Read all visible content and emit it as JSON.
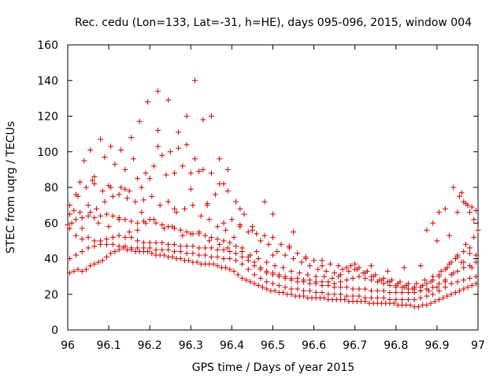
{
  "chart_data": {
    "type": "scatter",
    "title": "Rec. cedu (Lon=133, Lat=-31, h=HE), days 095-096, 2015, window 004",
    "xlabel": "GPS time / Days of year 2015",
    "ylabel": "STEC from uqrg / TECUs",
    "xlim": [
      96,
      97
    ],
    "ylim": [
      0,
      160
    ],
    "xticks": [
      96,
      96.1,
      96.2,
      96.3,
      96.4,
      96.5,
      96.6,
      96.7,
      96.8,
      96.9,
      97
    ],
    "xtick_labels": [
      "96",
      "96.1",
      "96.2",
      "96.3",
      "96.4",
      "96.5",
      "96.6",
      "96.7",
      "96.8",
      "96.9",
      "97"
    ],
    "yticks": [
      0,
      20,
      40,
      60,
      80,
      100,
      120,
      140,
      160
    ],
    "ytick_labels": [
      "0",
      "20",
      "40",
      "60",
      "80",
      "100",
      "120",
      "140",
      "160"
    ],
    "grid": false,
    "legend": "none",
    "marker": "plus",
    "color": "#cc0000",
    "series": [
      {
        "x": [
          96.005,
          96.015,
          96.025,
          96.035,
          96.045,
          96.055,
          96.065,
          96.075,
          96.085,
          96.095,
          96.105,
          96.115,
          96.125,
          96.135,
          96.145,
          96.155,
          96.165,
          96.175,
          96.185,
          96.195,
          96.205,
          96.215,
          96.225,
          96.235,
          96.245,
          96.255,
          96.265,
          96.275,
          96.285,
          96.295,
          96.305,
          96.315,
          96.325,
          96.335,
          96.345,
          96.355,
          96.365,
          96.375,
          96.385,
          96.395,
          96.405,
          96.415,
          96.425,
          96.435,
          96.445,
          96.455,
          96.465,
          96.475,
          96.485,
          96.495,
          96.505,
          96.515,
          96.525,
          96.535,
          96.545,
          96.555,
          96.565,
          96.575,
          96.585,
          96.595,
          96.605,
          96.615,
          96.625,
          96.635,
          96.645,
          96.655,
          96.665,
          96.675,
          96.685,
          96.695,
          96.705,
          96.715,
          96.725,
          96.735,
          96.745,
          96.755,
          96.765,
          96.775,
          96.785,
          96.795,
          96.805,
          96.815,
          96.825,
          96.835,
          96.845,
          96.855,
          96.865,
          96.875,
          96.885,
          96.895,
          96.905,
          96.915,
          96.925,
          96.935,
          96.945,
          96.955,
          96.965,
          96.975,
          96.985,
          96.995
        ],
        "y": [
          32,
          33,
          34,
          33,
          34,
          36,
          37,
          38,
          39,
          41,
          43,
          44,
          45,
          46,
          45,
          45,
          44,
          44,
          44,
          44,
          43,
          42,
          42,
          42,
          41,
          41,
          40,
          40,
          39,
          39,
          38,
          38,
          37,
          37,
          37,
          37,
          36,
          35,
          35,
          34,
          33,
          31,
          29,
          28,
          27,
          26,
          25,
          24,
          23,
          22,
          22,
          21,
          21,
          20,
          20,
          19,
          19,
          19,
          18,
          18,
          18,
          18,
          18,
          17,
          17,
          17,
          17,
          17,
          16,
          16,
          16,
          16,
          16,
          15,
          15,
          15,
          15,
          15,
          15,
          15,
          14,
          14,
          14,
          14,
          13,
          13,
          14,
          14,
          15,
          16,
          17,
          18,
          19,
          20,
          21,
          22,
          23,
          24,
          25,
          26
        ]
      },
      {
        "x": [
          96.005,
          96.02,
          96.035,
          96.05,
          96.065,
          96.08,
          96.095,
          96.11,
          96.125,
          96.14,
          96.155,
          96.17,
          96.185,
          96.2,
          96.215,
          96.23,
          96.245,
          96.26,
          96.275,
          96.29,
          96.305,
          96.32,
          96.335,
          96.35,
          96.365,
          96.38,
          96.395,
          96.41,
          96.425,
          96.44,
          96.455,
          96.47,
          96.485,
          96.5,
          96.515,
          96.53,
          96.545,
          96.56,
          96.575,
          96.59,
          96.605,
          96.62,
          96.635,
          96.65,
          96.665,
          96.68,
          96.695,
          96.71,
          96.725,
          96.74,
          96.755,
          96.77,
          96.785,
          96.8,
          96.815,
          96.83,
          96.845,
          96.86,
          96.875,
          96.89,
          96.905,
          96.92,
          96.935,
          96.95,
          96.965,
          96.98,
          96.995
        ],
        "y": [
          40,
          42,
          44,
          46,
          47,
          48,
          48,
          48,
          47,
          47,
          46,
          46,
          46,
          46,
          45,
          45,
          45,
          44,
          44,
          43,
          43,
          42,
          42,
          41,
          41,
          40,
          40,
          39,
          37,
          34,
          31,
          29,
          27,
          26,
          25,
          24,
          23,
          23,
          22,
          22,
          21,
          21,
          20,
          20,
          20,
          19,
          19,
          19,
          18,
          18,
          18,
          18,
          17,
          17,
          17,
          17,
          17,
          18,
          19,
          20,
          22,
          24,
          26,
          27,
          28,
          29,
          30
        ]
      },
      {
        "x": [
          96.005,
          96.02,
          96.035,
          96.05,
          96.065,
          96.08,
          96.095,
          96.11,
          96.125,
          96.14,
          96.155,
          96.17,
          96.185,
          96.2,
          96.215,
          96.23,
          96.245,
          96.26,
          96.275,
          96.29,
          96.305,
          96.32,
          96.335,
          96.35,
          96.365,
          96.38,
          96.395,
          96.41,
          96.425,
          96.44,
          96.455,
          96.47,
          96.485,
          96.5,
          96.515,
          96.53,
          96.545,
          96.56,
          96.575,
          96.59,
          96.605,
          96.62,
          96.635,
          96.65,
          96.665,
          96.68,
          96.695,
          96.71,
          96.725,
          96.74,
          96.755,
          96.77,
          96.785,
          96.8,
          96.815,
          96.83,
          96.845,
          96.86,
          96.875,
          96.89,
          96.905,
          96.92,
          96.935,
          96.95,
          96.965,
          96.98,
          96.995
        ],
        "y": [
          57,
          53,
          51,
          52,
          50,
          50,
          51,
          52,
          53,
          52,
          52,
          50,
          49,
          49,
          49,
          49,
          48,
          48,
          47,
          47,
          47,
          46,
          46,
          46,
          45,
          45,
          44,
          43,
          41,
          39,
          36,
          34,
          32,
          31,
          30,
          29,
          28,
          27,
          27,
          26,
          26,
          25,
          25,
          24,
          24,
          24,
          23,
          23,
          23,
          22,
          22,
          22,
          21,
          21,
          21,
          21,
          21,
          22,
          23,
          24,
          26,
          28,
          31,
          33,
          35,
          36,
          38
        ]
      },
      {
        "x": [
          96.005,
          96.02,
          96.035,
          96.05,
          96.065,
          96.08,
          96.095,
          96.11,
          96.125,
          96.14,
          96.155,
          96.17,
          96.185,
          96.2,
          96.215,
          96.23,
          96.245,
          96.26,
          96.275,
          96.29,
          96.305,
          96.32,
          96.335,
          96.35,
          96.365,
          96.38,
          96.395,
          96.41,
          96.425,
          96.44,
          96.455,
          96.47,
          96.485,
          96.5,
          96.515,
          96.53,
          96.545,
          96.56,
          96.575,
          96.59,
          96.605,
          96.62,
          96.635,
          96.65,
          96.665,
          96.68,
          96.695,
          96.71,
          96.725,
          96.74,
          96.755,
          96.77,
          96.785,
          96.8,
          96.815,
          96.83,
          96.845,
          96.86,
          96.875,
          96.89,
          96.905,
          96.92,
          96.935,
          96.95,
          96.965,
          96.98,
          96.995
        ],
        "y": [
          65,
          62,
          63,
          64,
          63,
          64,
          65,
          64,
          63,
          62,
          61,
          60,
          61,
          62,
          60,
          59,
          58,
          57,
          56,
          55,
          54,
          54,
          53,
          52,
          51,
          50,
          49,
          47,
          44,
          41,
          38,
          35,
          33,
          32,
          31,
          30,
          29,
          29,
          28,
          28,
          27,
          27,
          27,
          26,
          27,
          28,
          29,
          30,
          29,
          28,
          27,
          26,
          25,
          24,
          24,
          23,
          23,
          24,
          26,
          28,
          31,
          34,
          38,
          41,
          44,
          43,
          42
        ]
      },
      {
        "x": [
          96.005,
          96.025,
          96.045,
          96.065,
          96.085,
          96.105,
          96.125,
          96.145,
          96.165,
          96.185,
          96.205,
          96.225,
          96.245,
          96.265,
          96.285,
          96.305,
          96.325,
          96.345,
          96.365,
          96.385,
          96.405,
          96.425,
          96.445,
          96.465,
          96.485,
          96.505,
          96.525,
          96.545,
          96.565,
          96.585,
          96.605,
          96.625,
          96.645,
          96.665,
          96.685,
          96.705,
          96.725,
          96.745,
          96.765,
          96.785,
          96.805,
          96.825,
          96.845,
          96.865,
          96.885,
          96.905,
          96.925,
          96.945,
          96.965,
          96.985
        ],
        "y": [
          70,
          75,
          80,
          82,
          78,
          80,
          76,
          74,
          72,
          73,
          75,
          70,
          72,
          66,
          68,
          70,
          64,
          62,
          58,
          56,
          52,
          46,
          42,
          40,
          38,
          36,
          35,
          33,
          32,
          31,
          30,
          30,
          29,
          31,
          33,
          34,
          32,
          30,
          28,
          27,
          26,
          25,
          24,
          25,
          27,
          30,
          35,
          40,
          38,
          35
        ]
      },
      {
        "x": [
          96.01,
          96.03,
          96.05,
          96.07,
          96.09,
          96.11,
          96.13,
          96.15,
          96.17,
          96.19,
          96.21,
          96.23,
          96.25,
          96.27,
          96.29,
          96.31,
          96.33,
          96.35,
          96.37,
          96.39,
          96.41,
          96.43,
          96.45,
          96.47,
          96.49,
          96.51,
          96.53,
          96.55,
          96.57,
          96.59,
          96.61,
          96.63,
          96.65,
          96.67,
          96.69,
          96.71,
          96.73,
          96.75,
          96.77,
          96.79,
          96.81,
          96.83,
          96.85,
          96.87,
          96.89,
          96.91,
          96.93,
          96.95,
          96.97,
          96.99
        ],
        "y": [
          60,
          66,
          70,
          68,
          72,
          75,
          80,
          78,
          85,
          88,
          92,
          98,
          100,
          102,
          104,
          96,
          90,
          88,
          82,
          78,
          72,
          65,
          56,
          50,
          48,
          44,
          42,
          40,
          38,
          36,
          34,
          33,
          32,
          34,
          36,
          35,
          33,
          31,
          29,
          28,
          27,
          26,
          26,
          28,
          30,
          33,
          37,
          42,
          48,
          52
        ]
      },
      {
        "x": [
          96.03,
          96.055,
          96.08,
          96.105,
          96.13,
          96.155,
          96.175,
          96.195,
          96.22,
          96.245,
          96.27,
          96.29,
          96.31,
          96.33,
          96.35,
          96.37,
          96.39,
          96.42,
          96.45,
          96.48,
          96.5,
          96.55
        ],
        "y": [
          83,
          101,
          107,
          103,
          101,
          108,
          117,
          128,
          134,
          129,
          111,
          120,
          140,
          118,
          120,
          96,
          90,
          68,
          58,
          72,
          65,
          55
        ]
      },
      {
        "x": [
          96.02,
          96.04,
          96.065,
          96.09,
          96.115,
          96.14,
          96.16,
          96.18,
          96.2,
          96.22,
          96.24,
          96.26,
          96.28,
          96.3,
          96.32,
          96.34,
          96.36,
          96.38,
          96.4,
          96.42,
          96.44,
          96.46,
          96.48,
          96.5,
          96.52,
          96.54,
          96.56,
          96.58,
          96.6,
          96.62,
          96.64,
          96.66,
          96.68,
          96.7,
          96.72,
          96.74,
          96.76,
          96.78,
          96.8,
          96.82,
          96.84,
          96.86,
          96.88,
          96.9,
          96.92,
          96.94,
          96.96,
          96.98,
          97.0
        ],
        "y": [
          76,
          95,
          86,
          97,
          93,
          90,
          96,
          80,
          85,
          112,
          87,
          88,
          92,
          79,
          89,
          70,
          76,
          60,
          62,
          59,
          55,
          54,
          53,
          52,
          48,
          47,
          43,
          41,
          39,
          39,
          37,
          36,
          35,
          34,
          32,
          30,
          28,
          27,
          25,
          24,
          23,
          22,
          22,
          24,
          27,
          32,
          38,
          46,
          56
        ]
      },
      {
        "x": [
          96.06,
          96.1,
          96.14,
          96.18,
          96.22,
          96.26,
          96.3,
          96.34,
          96.38,
          96.42,
          96.46,
          96.5,
          96.54,
          96.58,
          96.62,
          96.66,
          96.7,
          96.74,
          96.78,
          96.82,
          96.86,
          96.9,
          96.93,
          96.95,
          96.96,
          96.97,
          96.98,
          96.99
        ],
        "y": [
          84,
          81,
          79,
          66,
          103,
          68,
          88,
          71,
          82,
          58,
          44,
          42,
          46,
          40,
          36,
          30,
          37,
          36,
          33,
          35,
          36,
          50,
          53,
          66,
          77,
          71,
          66,
          62
        ]
      },
      {
        "x": [
          96.0,
          96.015,
          96.035,
          96.055,
          96.075,
          96.1,
          96.125,
          96.15,
          96.17,
          96.19,
          96.21,
          96.235,
          96.255,
          96.28,
          96.3,
          96.32,
          96.345,
          96.37,
          96.39
        ],
        "y": [
          59,
          67,
          57,
          66,
          60,
          58,
          62,
          55,
          56,
          60,
          62,
          57,
          58,
          53,
          54,
          55,
          50,
          48,
          46
        ]
      },
      {
        "x": [
          96.94,
          96.955,
          96.965,
          96.975,
          96.985,
          96.995,
          96.92,
          96.905,
          96.89,
          96.875
        ],
        "y": [
          80,
          75,
          72,
          70,
          69,
          67,
          68,
          66,
          60,
          56
        ]
      }
    ]
  }
}
